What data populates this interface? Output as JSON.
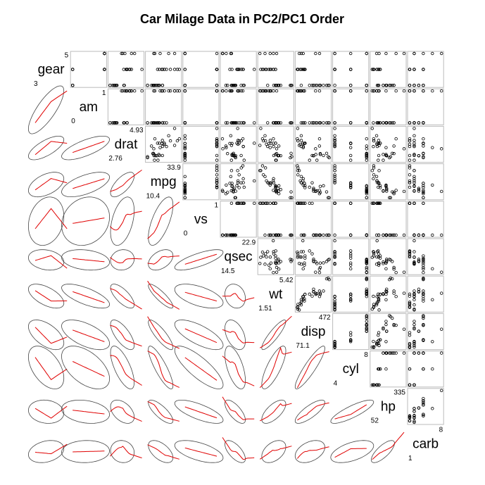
{
  "chart_data": {
    "type": "scatter_matrix",
    "title": "Car Milage Data in PC2/PC1 Order",
    "variables": [
      {
        "name": "gear",
        "range": [
          3,
          5
        ],
        "values": [
          4,
          4,
          4,
          3,
          3,
          3,
          3,
          4,
          4,
          4,
          4,
          3,
          3,
          3,
          3,
          3,
          3,
          4,
          4,
          4,
          3,
          3,
          3,
          3,
          3,
          4,
          5,
          5,
          5,
          5,
          5,
          4
        ]
      },
      {
        "name": "am",
        "range": [
          0,
          1
        ],
        "values": [
          1,
          1,
          1,
          0,
          0,
          0,
          0,
          0,
          0,
          0,
          0,
          0,
          0,
          0,
          0,
          0,
          0,
          1,
          1,
          1,
          0,
          0,
          0,
          0,
          0,
          1,
          1,
          1,
          1,
          1,
          1,
          1
        ]
      },
      {
        "name": "drat",
        "range": [
          2.76,
          4.93
        ],
        "values": [
          3.9,
          3.9,
          3.85,
          3.08,
          3.15,
          2.76,
          3.21,
          3.69,
          3.92,
          3.92,
          3.92,
          3.07,
          3.07,
          3.07,
          2.93,
          3,
          3.23,
          4.08,
          4.93,
          4.22,
          3.7,
          2.76,
          3.15,
          3.73,
          3.08,
          4.08,
          4.43,
          3.77,
          4.22,
          3.62,
          3.54,
          4.11
        ]
      },
      {
        "name": "mpg",
        "range": [
          10.4,
          33.9
        ],
        "values": [
          21,
          21,
          22.8,
          21.4,
          18.7,
          18.1,
          14.3,
          24.4,
          22.8,
          19.2,
          17.8,
          16.4,
          17.3,
          15.2,
          10.4,
          10.4,
          14.7,
          32.4,
          30.4,
          33.9,
          21.5,
          15.5,
          15.2,
          13.3,
          19.2,
          27.3,
          26,
          30.4,
          15.8,
          19.7,
          15,
          21.4
        ]
      },
      {
        "name": "vs",
        "range": [
          0,
          1
        ],
        "values": [
          0,
          0,
          1,
          1,
          0,
          1,
          0,
          1,
          1,
          1,
          1,
          0,
          0,
          0,
          0,
          0,
          0,
          1,
          1,
          1,
          1,
          0,
          0,
          0,
          0,
          1,
          0,
          1,
          0,
          0,
          0,
          1
        ]
      },
      {
        "name": "qsec",
        "range": [
          14.5,
          22.9
        ],
        "values": [
          16.46,
          17.02,
          18.61,
          19.44,
          17.02,
          20.22,
          15.84,
          20,
          22.9,
          18.3,
          18.9,
          17.4,
          17.6,
          18,
          17.98,
          17.82,
          17.42,
          19.47,
          18.52,
          19.9,
          20.01,
          16.87,
          17.3,
          15.41,
          17.05,
          18.9,
          16.7,
          16.9,
          14.5,
          15.5,
          14.6,
          18.6
        ]
      },
      {
        "name": "wt",
        "range": [
          1.51,
          5.42
        ],
        "values": [
          2.62,
          2.875,
          2.32,
          3.215,
          3.44,
          3.46,
          3.57,
          3.19,
          3.15,
          3.44,
          3.44,
          4.07,
          3.73,
          3.78,
          5.25,
          5.424,
          5.345,
          2.2,
          1.615,
          1.835,
          2.465,
          3.52,
          3.435,
          3.84,
          3.845,
          1.935,
          2.14,
          1.513,
          3.17,
          2.77,
          3.57,
          2.78
        ]
      },
      {
        "name": "disp",
        "range": [
          71.1,
          472
        ],
        "values": [
          160,
          160,
          108,
          258,
          360,
          225,
          360,
          146.7,
          140.8,
          167.6,
          167.6,
          275.8,
          275.8,
          275.8,
          472,
          460,
          440,
          78.7,
          75.7,
          71.1,
          120.1,
          318,
          304,
          350,
          400,
          79,
          120.3,
          95.1,
          351,
          145,
          301,
          121
        ]
      },
      {
        "name": "cyl",
        "range": [
          4,
          8
        ],
        "values": [
          6,
          6,
          4,
          6,
          8,
          6,
          8,
          4,
          4,
          6,
          6,
          8,
          8,
          8,
          8,
          8,
          8,
          4,
          4,
          4,
          4,
          8,
          8,
          8,
          8,
          4,
          4,
          4,
          8,
          6,
          8,
          4
        ]
      },
      {
        "name": "hp",
        "range": [
          52,
          335
        ],
        "values": [
          110,
          110,
          93,
          110,
          175,
          105,
          245,
          62,
          95,
          123,
          123,
          180,
          180,
          180,
          205,
          215,
          230,
          66,
          52,
          65,
          97,
          150,
          150,
          245,
          175,
          66,
          91,
          113,
          264,
          175,
          335,
          109
        ]
      },
      {
        "name": "carb",
        "range": [
          1,
          8
        ],
        "values": [
          4,
          4,
          1,
          1,
          2,
          1,
          4,
          2,
          2,
          4,
          4,
          3,
          3,
          3,
          4,
          4,
          4,
          1,
          2,
          1,
          1,
          2,
          2,
          4,
          2,
          1,
          2,
          2,
          4,
          6,
          8,
          2
        ]
      }
    ]
  }
}
